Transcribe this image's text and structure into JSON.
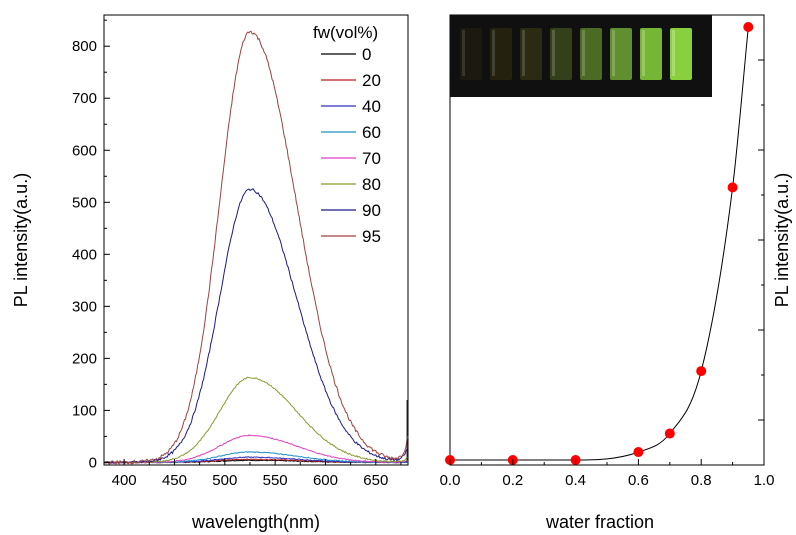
{
  "chart_data": [
    {
      "type": "line",
      "xlabel": "wavelength(nm)",
      "ylabel": "PL intensity(a.u.)",
      "xlim": [
        380,
        682
      ],
      "ylim": [
        -5,
        860
      ],
      "x_ticks": [
        "400",
        "450",
        "500",
        "550",
        "600",
        "650"
      ],
      "y_ticks": [
        "0",
        "100",
        "200",
        "300",
        "400",
        "500",
        "600",
        "700",
        "800"
      ],
      "legend_title": "fw(vol%)",
      "legend_placement": "top-right",
      "peak_wavelength": 525,
      "series": [
        {
          "name": "0",
          "peak": 4,
          "color": "#000000"
        },
        {
          "name": "20",
          "peak": 6,
          "color": "#b22222"
        },
        {
          "name": "40",
          "peak": 10,
          "color": "#3030c0"
        },
        {
          "name": "60",
          "peak": 20,
          "color": "#1e90c8"
        },
        {
          "name": "70",
          "peak": 52,
          "color": "#e040c0"
        },
        {
          "name": "80",
          "peak": 163,
          "color": "#8a9a2a"
        },
        {
          "name": "90",
          "peak": 525,
          "color": "#1a1a8c"
        },
        {
          "name": "95",
          "peak": 828,
          "color": "#a04040"
        }
      ]
    },
    {
      "type": "scatter",
      "xlabel": "water fraction",
      "ylabel": "PL intensity(a.u.)",
      "xlim": [
        0,
        1.0
      ],
      "ylim": [
        0,
        855
      ],
      "x_ticks": [
        "0.0",
        "0.2",
        "0.4",
        "0.6",
        "0.8",
        "1.0"
      ],
      "marker_color": "#ff0000",
      "line_color": "#000000",
      "x": [
        0,
        0.2,
        0.4,
        0.6,
        0.7,
        0.8,
        0.9,
        0.95
      ],
      "y": [
        10,
        10,
        10,
        25,
        60,
        178,
        525,
        828
      ],
      "inset_image": {
        "description": "photo of vials under UV light",
        "vial_count": 8,
        "vial_colors": [
          "#1c1a10",
          "#24220f",
          "#2a2b12",
          "#34401a",
          "#4b6a24",
          "#5f8f2e",
          "#76b635",
          "#8ad03e"
        ]
      }
    }
  ]
}
